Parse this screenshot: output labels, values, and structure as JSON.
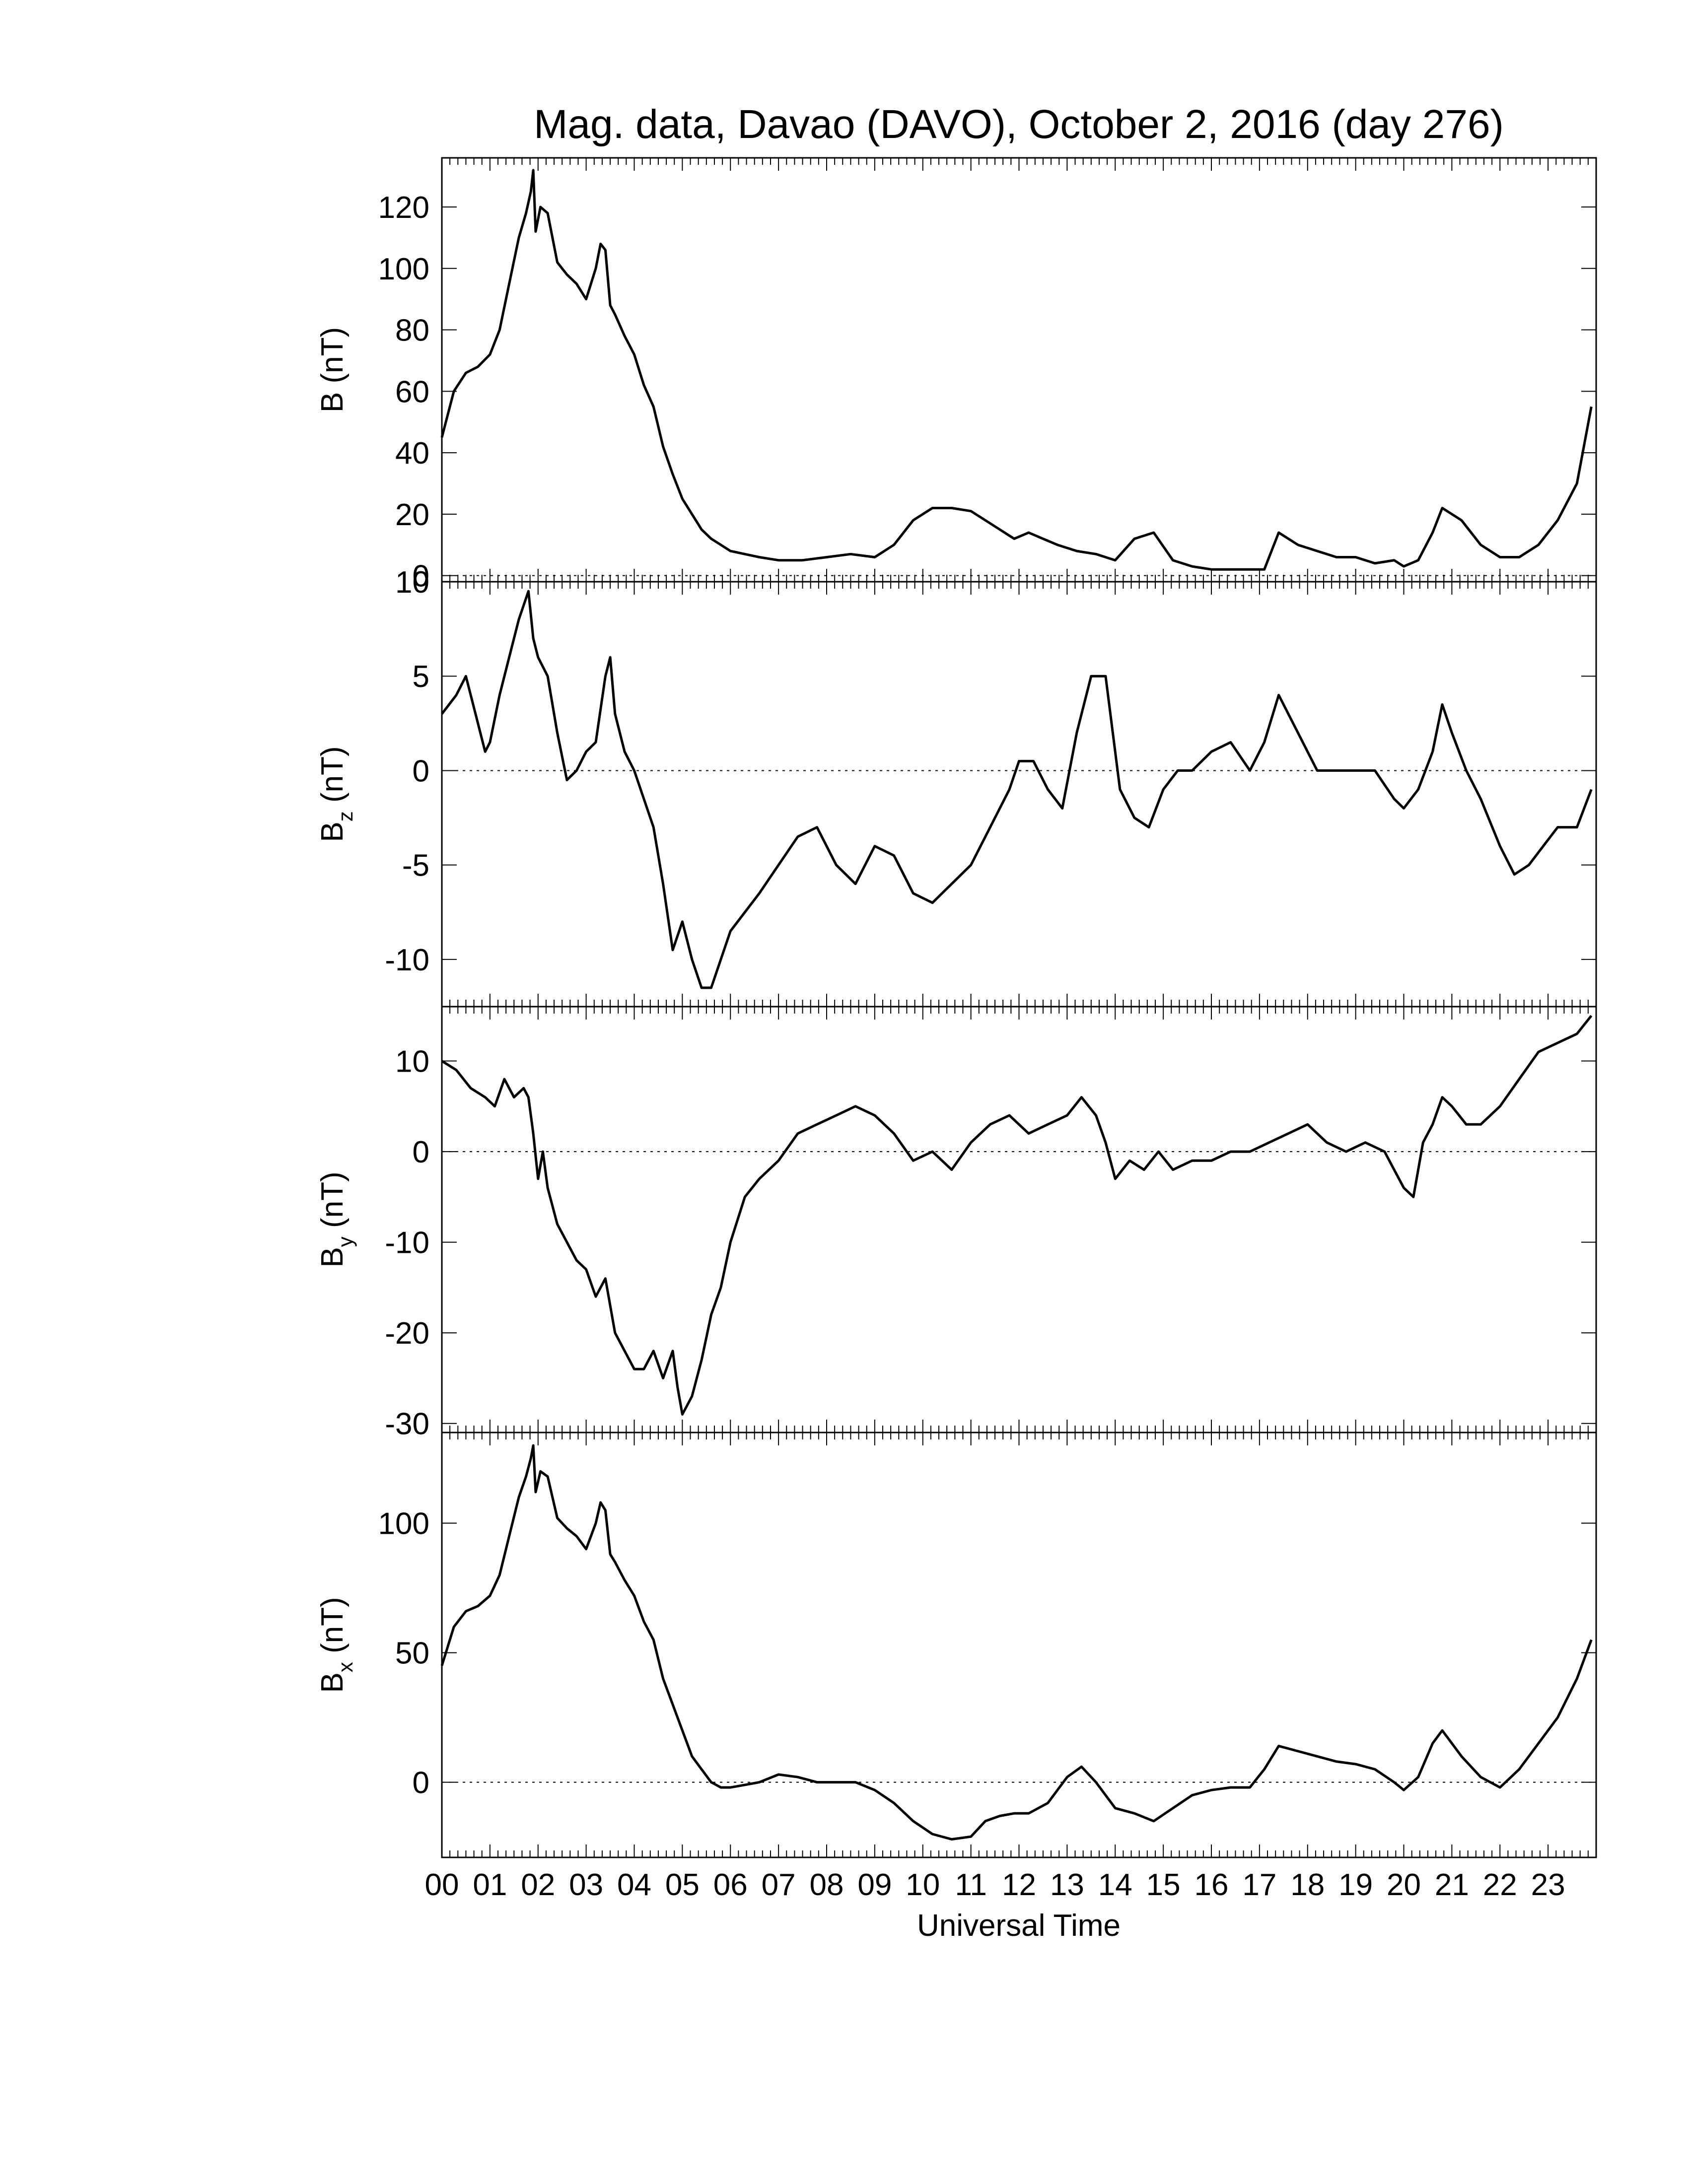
{
  "chart_data": {
    "type": "line",
    "title": "Mag. data, Davao (DAVO), October 2, 2016 (day 276)",
    "xlabel": "Universal Time",
    "x_ticks": [
      "00",
      "01",
      "02",
      "03",
      "04",
      "05",
      "06",
      "07",
      "08",
      "09",
      "10",
      "11",
      "12",
      "13",
      "14",
      "15",
      "16",
      "17",
      "18",
      "19",
      "20",
      "21",
      "22",
      "23"
    ],
    "xlim": [
      0,
      24
    ],
    "reference_line": "dotted line at 0 in each panel",
    "panels": [
      {
        "name": "B",
        "ylabel_main": "B (nT)",
        "ylabel_sub": "",
        "ylim": [
          -2,
          136
        ],
        "yticks": [
          0,
          20,
          40,
          60,
          80,
          100,
          120
        ],
        "ytick_labels": [
          "0",
          "20",
          "40",
          "60",
          "80",
          "100",
          "120"
        ],
        "x": [
          0,
          0.25,
          0.5,
          0.75,
          1.0,
          1.2,
          1.4,
          1.6,
          1.75,
          1.85,
          1.9,
          1.95,
          2.05,
          2.2,
          2.4,
          2.6,
          2.8,
          3.0,
          3.2,
          3.3,
          3.4,
          3.5,
          3.6,
          3.8,
          4.0,
          4.2,
          4.4,
          4.6,
          4.8,
          5.0,
          5.2,
          5.4,
          5.6,
          5.8,
          6.0,
          6.3,
          6.6,
          7.0,
          7.5,
          8.0,
          8.5,
          9.0,
          9.4,
          9.8,
          10.2,
          10.6,
          11.0,
          11.3,
          11.6,
          11.9,
          12.2,
          12.5,
          12.8,
          13.2,
          13.6,
          14.0,
          14.4,
          14.8,
          15.2,
          15.6,
          16.0,
          16.4,
          16.8,
          17.1,
          17.4,
          17.8,
          18.2,
          18.6,
          19.0,
          19.4,
          19.8,
          20.0,
          20.3,
          20.6,
          20.8,
          21.2,
          21.6,
          22.0,
          22.4,
          22.8,
          23.2,
          23.6,
          23.9
        ],
        "values": [
          45,
          60,
          66,
          68,
          72,
          80,
          95,
          110,
          118,
          125,
          132,
          112,
          120,
          118,
          102,
          98,
          95,
          90,
          100,
          108,
          106,
          88,
          85,
          78,
          72,
          62,
          55,
          42,
          33,
          25,
          20,
          15,
          12,
          10,
          8,
          7,
          6,
          5,
          5,
          6,
          7,
          6,
          10,
          18,
          22,
          22,
          21,
          18,
          15,
          12,
          14,
          12,
          10,
          8,
          7,
          5,
          12,
          14,
          5,
          3,
          2,
          2,
          2,
          2,
          14,
          10,
          8,
          6,
          6,
          4,
          5,
          3,
          5,
          14,
          22,
          18,
          10,
          6,
          6,
          10,
          18,
          30,
          55
        ]
      },
      {
        "name": "Bz",
        "ylabel_main": "B",
        "ylabel_sub": "z",
        "ylabel_unit": " (nT)",
        "ylim": [
          -12.5,
          10.0
        ],
        "yticks": [
          10,
          5,
          0,
          -5,
          -10
        ],
        "ytick_labels": [
          "10",
          "5",
          "0",
          "-5",
          "-10"
        ],
        "x": [
          0,
          0.3,
          0.5,
          0.7,
          0.9,
          1.0,
          1.2,
          1.4,
          1.6,
          1.8,
          1.9,
          2.0,
          2.2,
          2.4,
          2.6,
          2.8,
          3.0,
          3.2,
          3.4,
          3.5,
          3.6,
          3.8,
          4.0,
          4.2,
          4.4,
          4.6,
          4.8,
          5.0,
          5.2,
          5.4,
          5.6,
          5.8,
          6.0,
          6.3,
          6.6,
          7.0,
          7.4,
          7.8,
          8.2,
          8.6,
          9.0,
          9.4,
          9.8,
          10.2,
          10.6,
          11.0,
          11.4,
          11.8,
          12.0,
          12.3,
          12.6,
          12.9,
          13.2,
          13.5,
          13.8,
          14.1,
          14.4,
          14.7,
          15.0,
          15.3,
          15.6,
          16.0,
          16.4,
          16.8,
          17.1,
          17.4,
          17.8,
          18.2,
          18.6,
          19.0,
          19.4,
          19.8,
          20.0,
          20.3,
          20.6,
          20.8,
          21.0,
          21.3,
          21.6,
          22.0,
          22.3,
          22.6,
          22.9,
          23.2,
          23.6,
          23.9
        ],
        "values": [
          3,
          4,
          5,
          3,
          1,
          1.5,
          4,
          6,
          8,
          9.5,
          7,
          6,
          5,
          2,
          -0.5,
          0,
          1,
          1.5,
          5,
          6,
          3,
          1,
          0,
          -1.5,
          -3,
          -6,
          -9.5,
          -8,
          -10,
          -11.5,
          -11.5,
          -10,
          -8.5,
          -7.5,
          -6.5,
          -5,
          -3.5,
          -3,
          -5,
          -6,
          -4,
          -4.5,
          -6.5,
          -7,
          -6,
          -5,
          -3,
          -1,
          0.5,
          0.5,
          -1,
          -2,
          2,
          5,
          5,
          -1,
          -2.5,
          -3,
          -1,
          0,
          0,
          1,
          1.5,
          0,
          1.5,
          4,
          2,
          0,
          0,
          0,
          0,
          -1.5,
          -2,
          -1,
          1,
          3.5,
          2,
          0,
          -1.5,
          -4,
          -5.5,
          -5,
          -4,
          -3,
          -3,
          -1
        ]
      },
      {
        "name": "By",
        "ylabel_main": "B",
        "ylabel_sub": "y",
        "ylabel_unit": " (nT)",
        "ylim": [
          -31,
          16
        ],
        "yticks": [
          10,
          0,
          -10,
          -20,
          -30
        ],
        "ytick_labels": [
          "10",
          "0",
          "-10",
          "-20",
          "-30"
        ],
        "x": [
          0,
          0.3,
          0.6,
          0.9,
          1.1,
          1.3,
          1.5,
          1.7,
          1.8,
          1.9,
          2.0,
          2.1,
          2.2,
          2.4,
          2.6,
          2.8,
          3.0,
          3.2,
          3.4,
          3.6,
          3.8,
          4.0,
          4.2,
          4.4,
          4.6,
          4.8,
          4.9,
          5.0,
          5.2,
          5.4,
          5.6,
          5.8,
          6.0,
          6.3,
          6.6,
          7.0,
          7.4,
          7.8,
          8.2,
          8.6,
          9.0,
          9.4,
          9.8,
          10.2,
          10.6,
          11.0,
          11.4,
          11.8,
          12.2,
          12.6,
          13.0,
          13.3,
          13.6,
          13.8,
          14.0,
          14.3,
          14.6,
          14.9,
          15.2,
          15.6,
          16.0,
          16.4,
          16.8,
          17.2,
          17.6,
          18.0,
          18.4,
          18.8,
          19.2,
          19.6,
          19.8,
          20.0,
          20.2,
          20.4,
          20.6,
          20.8,
          21.0,
          21.3,
          21.6,
          22.0,
          22.4,
          22.8,
          23.2,
          23.6,
          23.9
        ],
        "values": [
          10,
          9,
          7,
          6,
          5,
          8,
          6,
          7,
          6,
          2,
          -3,
          0,
          -4,
          -8,
          -10,
          -12,
          -13,
          -16,
          -14,
          -20,
          -22,
          -24,
          -24,
          -22,
          -25,
          -22,
          -26,
          -29,
          -27,
          -23,
          -18,
          -15,
          -10,
          -5,
          -3,
          -1,
          2,
          3,
          4,
          5,
          4,
          2,
          -1,
          0,
          -2,
          1,
          3,
          4,
          2,
          3,
          4,
          6,
          4,
          1,
          -3,
          -1,
          -2,
          0,
          -2,
          -1,
          -1,
          0,
          0,
          1,
          2,
          3,
          1,
          0,
          1,
          0,
          -2,
          -4,
          -5,
          1,
          3,
          6,
          5,
          3,
          3,
          5,
          8,
          11,
          12,
          13,
          15
        ]
      },
      {
        "name": "Bx",
        "ylabel_main": "B",
        "ylabel_sub": "x",
        "ylabel_unit": " (nT)",
        "ylim": [
          -29,
          135
        ],
        "yticks": [
          100,
          50,
          0
        ],
        "ytick_labels": [
          "100",
          "50",
          "0"
        ],
        "x": [
          0,
          0.25,
          0.5,
          0.75,
          1.0,
          1.2,
          1.4,
          1.6,
          1.75,
          1.85,
          1.9,
          1.95,
          2.05,
          2.2,
          2.4,
          2.6,
          2.8,
          3.0,
          3.2,
          3.3,
          3.4,
          3.5,
          3.6,
          3.8,
          4.0,
          4.2,
          4.4,
          4.6,
          4.8,
          5.0,
          5.2,
          5.4,
          5.6,
          5.8,
          6.0,
          6.3,
          6.6,
          7.0,
          7.4,
          7.8,
          8.2,
          8.6,
          9.0,
          9.4,
          9.8,
          10.2,
          10.6,
          11.0,
          11.3,
          11.6,
          11.9,
          12.2,
          12.6,
          13.0,
          13.3,
          13.6,
          14.0,
          14.4,
          14.8,
          15.2,
          15.6,
          16.0,
          16.4,
          16.8,
          17.1,
          17.4,
          17.8,
          18.2,
          18.6,
          19.0,
          19.4,
          19.8,
          20.0,
          20.3,
          20.6,
          20.8,
          21.2,
          21.6,
          22.0,
          22.4,
          22.8,
          23.2,
          23.6,
          23.9
        ],
        "values": [
          45,
          60,
          66,
          68,
          72,
          80,
          95,
          110,
          118,
          125,
          130,
          112,
          120,
          118,
          102,
          98,
          95,
          90,
          100,
          108,
          105,
          88,
          85,
          78,
          72,
          62,
          55,
          40,
          30,
          20,
          10,
          5,
          0,
          -2,
          -2,
          -1,
          0,
          3,
          2,
          0,
          0,
          0,
          -3,
          -8,
          -15,
          -20,
          -22,
          -21,
          -15,
          -13,
          -12,
          -12,
          -8,
          2,
          6,
          0,
          -10,
          -12,
          -15,
          -10,
          -5,
          -3,
          -2,
          -2,
          5,
          14,
          12,
          10,
          8,
          7,
          5,
          0,
          -3,
          2,
          15,
          20,
          10,
          2,
          -2,
          5,
          15,
          25,
          40,
          55
        ]
      }
    ]
  }
}
